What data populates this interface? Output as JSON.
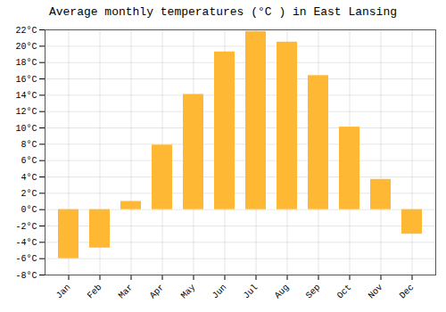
{
  "chart_data": {
    "type": "bar",
    "title": "Average monthly temperatures (°C ) in East Lansing",
    "categories": [
      "Jan",
      "Feb",
      "Mar",
      "Apr",
      "May",
      "Jun",
      "Jul",
      "Aug",
      "Sep",
      "Oct",
      "Nov",
      "Dec"
    ],
    "values": [
      -6.0,
      -4.7,
      1.0,
      7.9,
      14.1,
      19.3,
      21.8,
      20.5,
      16.4,
      10.1,
      3.7,
      -3.0
    ],
    "color": "#FFB833",
    "ylim": [
      -8,
      22
    ],
    "yticks": [
      {
        "value": -8,
        "label": "-8°C"
      },
      {
        "value": -6,
        "label": "-6°C"
      },
      {
        "value": -4,
        "label": "-4°C"
      },
      {
        "value": -2,
        "label": "-2°C"
      },
      {
        "value": 0,
        "label": "0°C"
      },
      {
        "value": 2,
        "label": "2°C"
      },
      {
        "value": 4,
        "label": "4°C"
      },
      {
        "value": 6,
        "label": "6°C"
      },
      {
        "value": 8,
        "label": "8°C"
      },
      {
        "value": 10,
        "label": "10°C"
      },
      {
        "value": 12,
        "label": "12°C"
      },
      {
        "value": 14,
        "label": "14°C"
      },
      {
        "value": 16,
        "label": "16°C"
      },
      {
        "value": 18,
        "label": "18°C"
      },
      {
        "value": 20,
        "label": "20°C"
      },
      {
        "value": 22,
        "label": "22°C"
      }
    ],
    "grid": true
  }
}
